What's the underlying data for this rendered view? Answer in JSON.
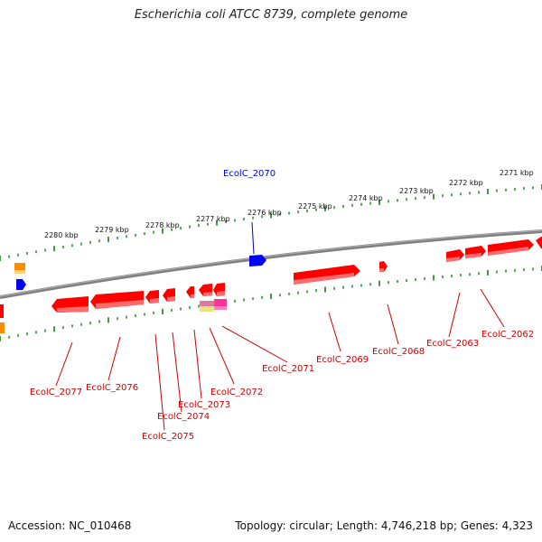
{
  "title": "Escherichia coli ATCC 8739, complete genome",
  "footer": {
    "accession": "Accession: NC_010468",
    "topology": "Topology: circular; Length: 4,746,218 bp; Genes: 4,323"
  },
  "colors": {
    "backbone": "#808080",
    "tick": "#1a7a1a",
    "gene_forward": "#ff0000",
    "gene_other_strand": "#0000ff",
    "feature_orange": "#ff8c00",
    "feature_pink": "#ff3399",
    "feature_yellow": "#f0e080",
    "forward_label": "#cc0000",
    "reverse_label": "#0000cc"
  },
  "scale_labels": [
    "2280 kbp",
    "2279 kbp",
    "2278 kbp",
    "2277 kbp",
    "2276 kbp",
    "2275 kbp",
    "2274 kbp",
    "2273 kbp",
    "2272 kbp",
    "2271 kbp"
  ],
  "gene_labels": [
    "EcolC_2070",
    "EcolC_2077",
    "EcolC_2076",
    "EcolC_2075",
    "EcolC_2074",
    "EcolC_2073",
    "EcolC_2072",
    "EcolC_2071",
    "EcolC_2069",
    "EcolC_2068",
    "EcolC_2063",
    "EcolC_2062"
  ]
}
